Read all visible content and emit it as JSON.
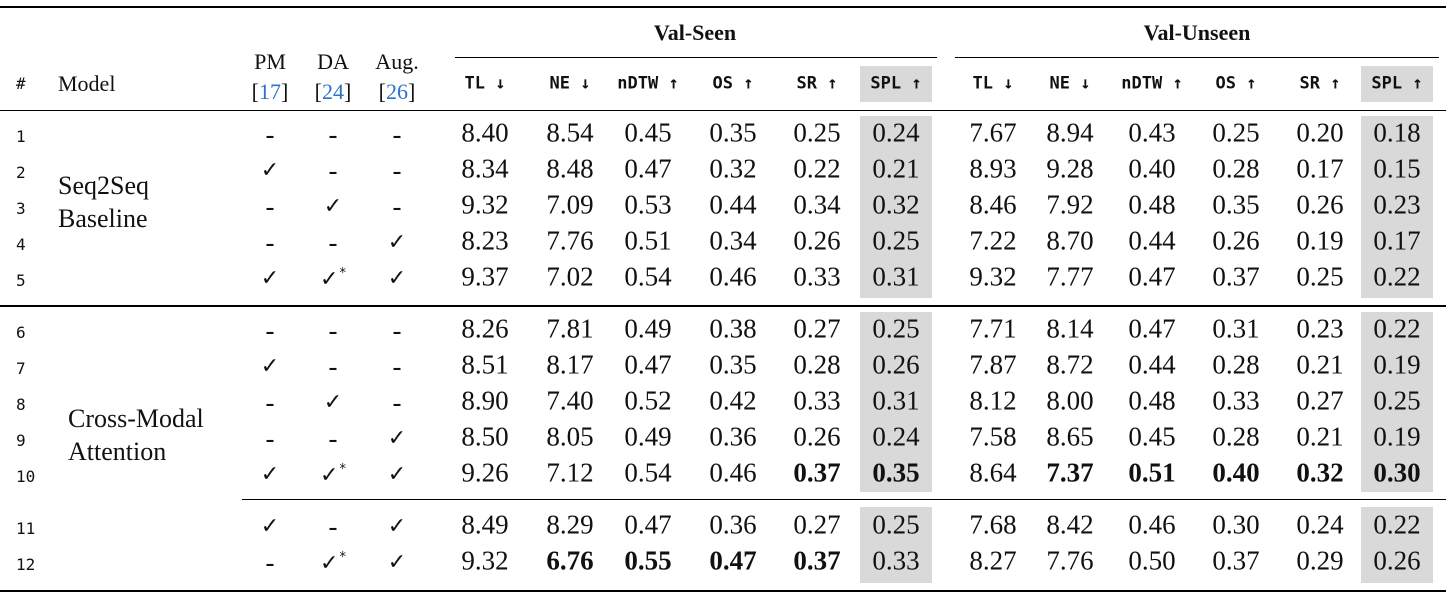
{
  "header": {
    "index_label": "#",
    "model_label": "Model",
    "pm": {
      "label": "PM",
      "cite": "17"
    },
    "da": {
      "label": "DA",
      "cite": "24"
    },
    "aug": {
      "label": "Aug.",
      "cite": "26"
    },
    "val_seen": "Val-Seen",
    "val_unseen": "Val-Unseen",
    "metrics": [
      "TL ↓",
      "NE ↓",
      "nDTW ↑",
      "OS ↑",
      "SR ↑",
      "SPL ↑"
    ]
  },
  "model_groups": [
    "Seq2Seq\nBaseline",
    "Cross-Modal\nAttention"
  ],
  "rows": [
    {
      "idx": "1",
      "pm": "-",
      "da": "-",
      "aug": "-",
      "seen": [
        "8.40",
        "8.54",
        "0.45",
        "0.35",
        "0.25",
        "0.24"
      ],
      "unseen": [
        "7.67",
        "8.94",
        "0.43",
        "0.25",
        "0.20",
        "0.18"
      ],
      "bold_seen": [],
      "bold_unseen": []
    },
    {
      "idx": "2",
      "pm": "✓",
      "da": "-",
      "aug": "-",
      "seen": [
        "8.34",
        "8.48",
        "0.47",
        "0.32",
        "0.22",
        "0.21"
      ],
      "unseen": [
        "8.93",
        "9.28",
        "0.40",
        "0.28",
        "0.17",
        "0.15"
      ],
      "bold_seen": [],
      "bold_unseen": []
    },
    {
      "idx": "3",
      "pm": "-",
      "da": "✓",
      "aug": "-",
      "seen": [
        "9.32",
        "7.09",
        "0.53",
        "0.44",
        "0.34",
        "0.32"
      ],
      "unseen": [
        "8.46",
        "7.92",
        "0.48",
        "0.35",
        "0.26",
        "0.23"
      ],
      "bold_seen": [],
      "bold_unseen": []
    },
    {
      "idx": "4",
      "pm": "-",
      "da": "-",
      "aug": "✓",
      "seen": [
        "8.23",
        "7.76",
        "0.51",
        "0.34",
        "0.26",
        "0.25"
      ],
      "unseen": [
        "7.22",
        "8.70",
        "0.44",
        "0.26",
        "0.19",
        "0.17"
      ],
      "bold_seen": [],
      "bold_unseen": []
    },
    {
      "idx": "5",
      "pm": "✓",
      "da": "✓*",
      "aug": "✓",
      "seen": [
        "9.37",
        "7.02",
        "0.54",
        "0.46",
        "0.33",
        "0.31"
      ],
      "unseen": [
        "9.32",
        "7.77",
        "0.47",
        "0.37",
        "0.25",
        "0.22"
      ],
      "bold_seen": [],
      "bold_unseen": []
    },
    {
      "idx": "6",
      "pm": "-",
      "da": "-",
      "aug": "-",
      "seen": [
        "8.26",
        "7.81",
        "0.49",
        "0.38",
        "0.27",
        "0.25"
      ],
      "unseen": [
        "7.71",
        "8.14",
        "0.47",
        "0.31",
        "0.23",
        "0.22"
      ],
      "bold_seen": [],
      "bold_unseen": []
    },
    {
      "idx": "7",
      "pm": "✓",
      "da": "-",
      "aug": "-",
      "seen": [
        "8.51",
        "8.17",
        "0.47",
        "0.35",
        "0.28",
        "0.26"
      ],
      "unseen": [
        "7.87",
        "8.72",
        "0.44",
        "0.28",
        "0.21",
        "0.19"
      ],
      "bold_seen": [],
      "bold_unseen": []
    },
    {
      "idx": "8",
      "pm": "-",
      "da": "✓",
      "aug": "-",
      "seen": [
        "8.90",
        "7.40",
        "0.52",
        "0.42",
        "0.33",
        "0.31"
      ],
      "unseen": [
        "8.12",
        "8.00",
        "0.48",
        "0.33",
        "0.27",
        "0.25"
      ],
      "bold_seen": [],
      "bold_unseen": []
    },
    {
      "idx": "9",
      "pm": "-",
      "da": "-",
      "aug": "✓",
      "seen": [
        "8.50",
        "8.05",
        "0.49",
        "0.36",
        "0.26",
        "0.24"
      ],
      "unseen": [
        "7.58",
        "8.65",
        "0.45",
        "0.28",
        "0.21",
        "0.19"
      ],
      "bold_seen": [],
      "bold_unseen": []
    },
    {
      "idx": "10",
      "pm": "✓",
      "da": "✓*",
      "aug": "✓",
      "seen": [
        "9.26",
        "7.12",
        "0.54",
        "0.46",
        "0.37",
        "0.35"
      ],
      "unseen": [
        "8.64",
        "7.37",
        "0.51",
        "0.40",
        "0.32",
        "0.30"
      ],
      "bold_seen": [
        4,
        5
      ],
      "bold_unseen": [
        1,
        2,
        3,
        4,
        5
      ]
    },
    {
      "idx": "11",
      "pm": "✓",
      "da": "-",
      "aug": "✓",
      "seen": [
        "8.49",
        "8.29",
        "0.47",
        "0.36",
        "0.27",
        "0.25"
      ],
      "unseen": [
        "7.68",
        "8.42",
        "0.46",
        "0.30",
        "0.24",
        "0.22"
      ],
      "bold_seen": [],
      "bold_unseen": []
    },
    {
      "idx": "12",
      "pm": "-",
      "da": "✓*",
      "aug": "✓",
      "seen": [
        "9.32",
        "6.76",
        "0.55",
        "0.47",
        "0.37",
        "0.33"
      ],
      "unseen": [
        "8.27",
        "7.76",
        "0.50",
        "0.37",
        "0.29",
        "0.26"
      ],
      "bold_seen": [
        1,
        2,
        3,
        4
      ],
      "bold_unseen": []
    }
  ]
}
